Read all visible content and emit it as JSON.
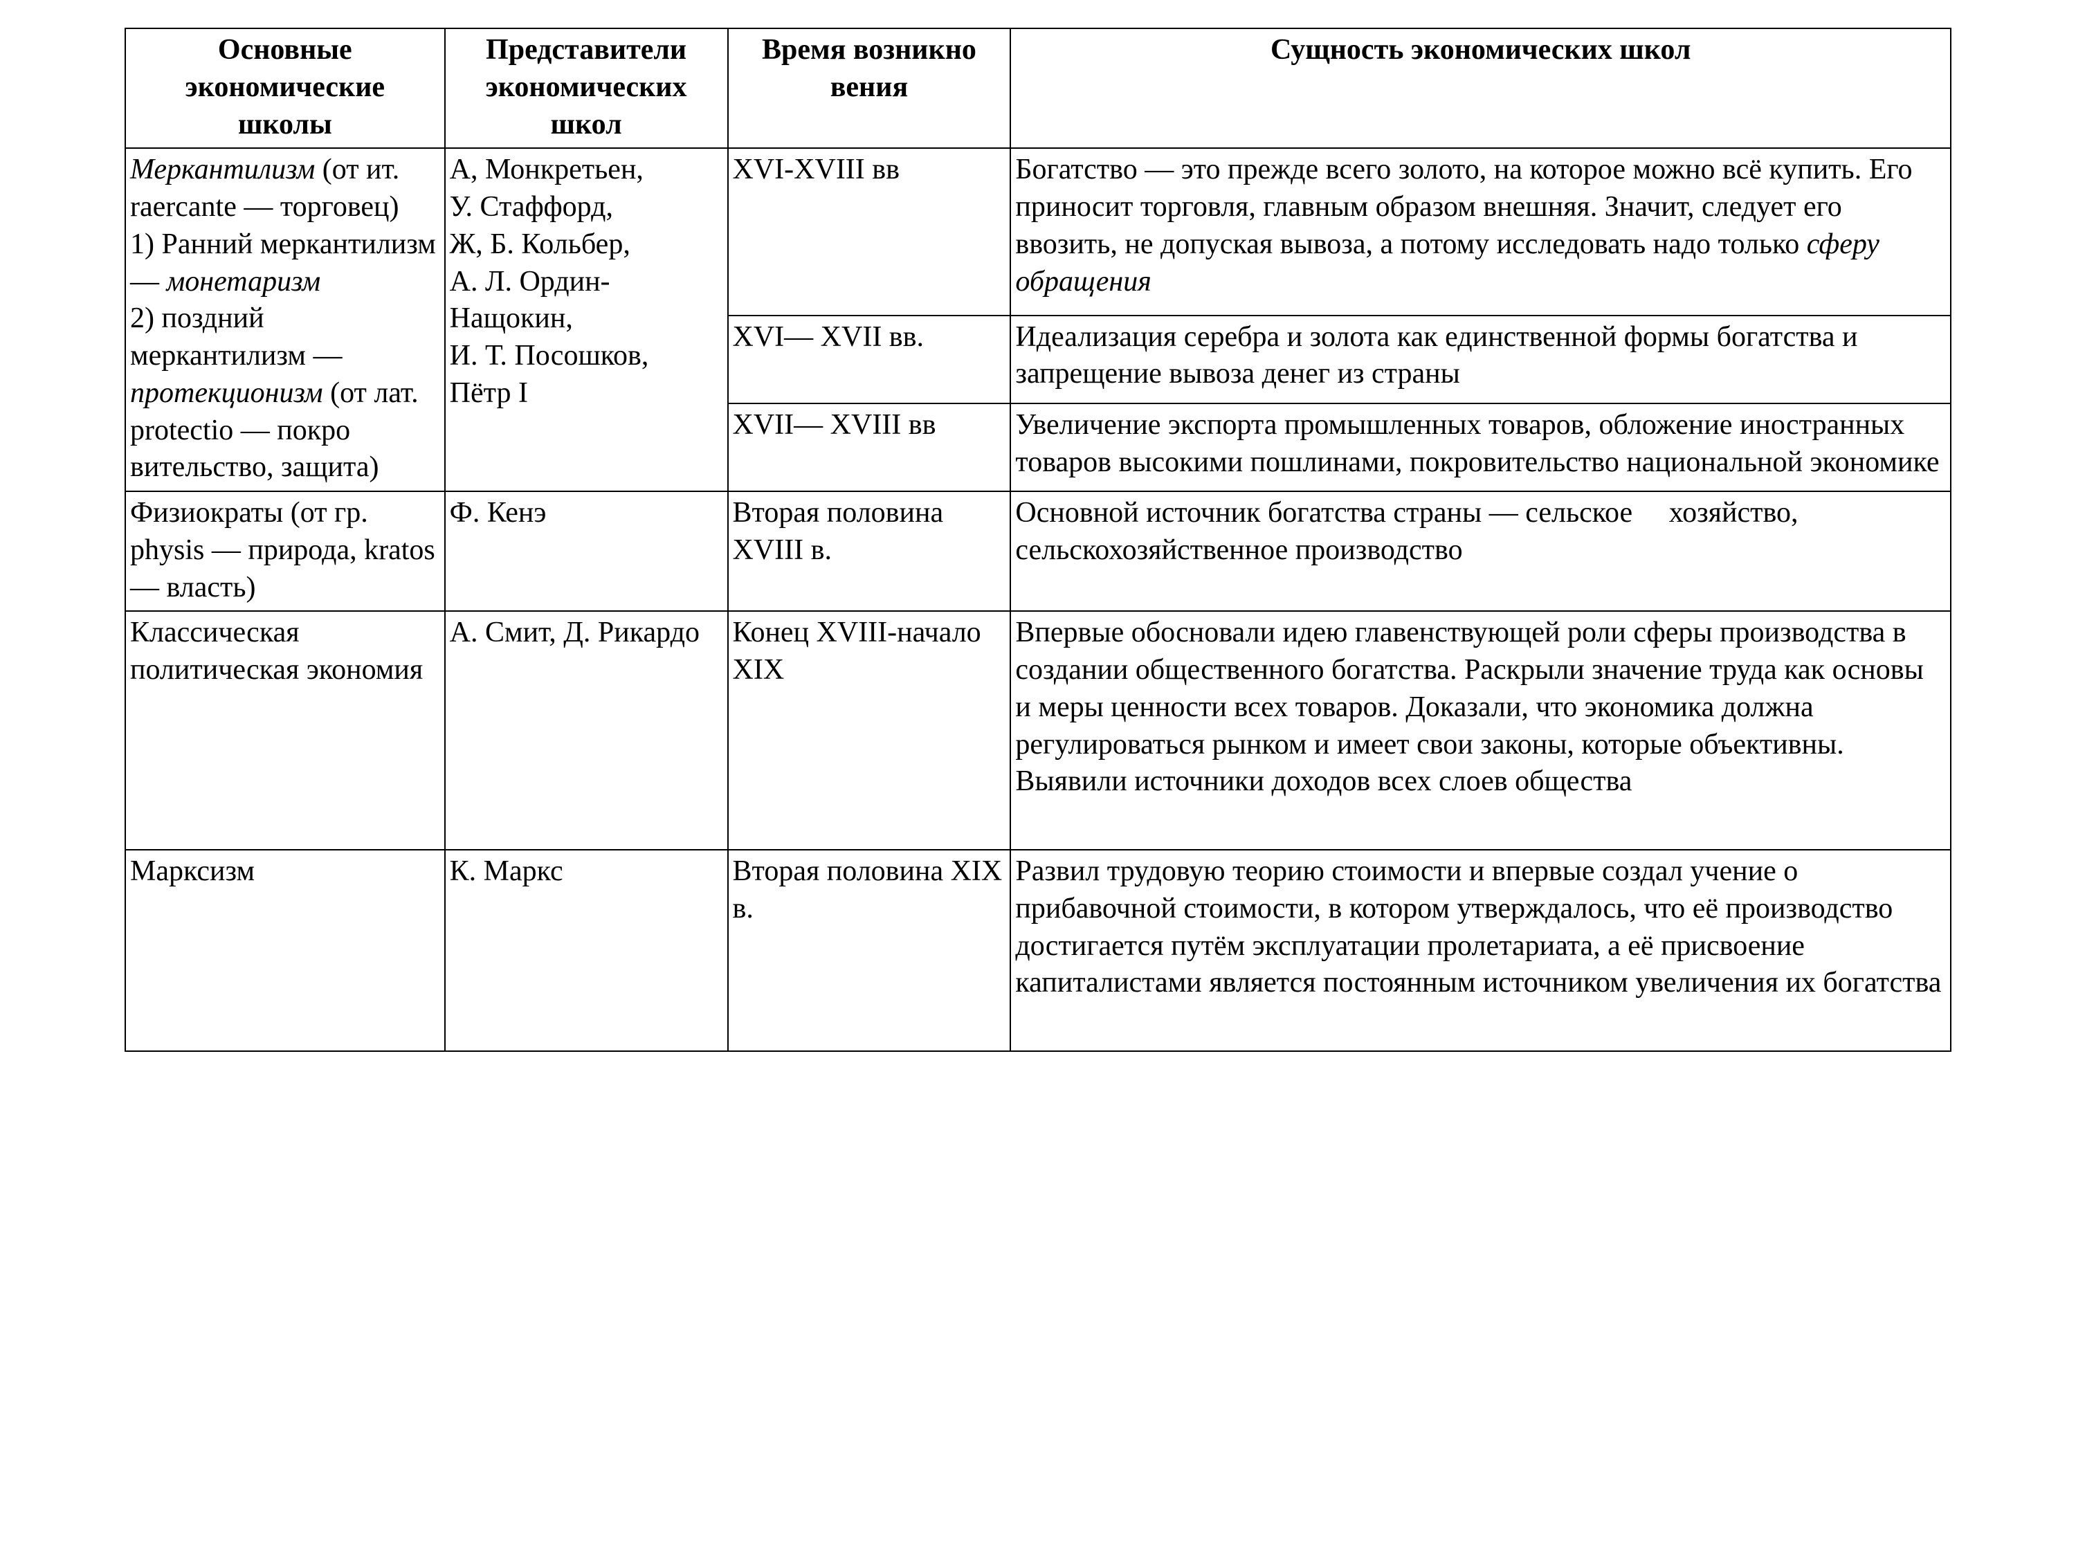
{
  "table": {
    "headers": {
      "col1_line1": "Основные",
      "col1_line2": "экономические",
      "col1_line3": "школы",
      "col2_line1": "Представители",
      "col2_line2": "экономических",
      "col2_line3": "школ",
      "col3_line1": "Время возникно",
      "col3_line2": "вения",
      "col4_line1": "Сущность экономических школ"
    },
    "row1": {
      "school_html": "<em>Меркантилизм</em> (от ит. raercante — торговец)<br>1) Ранний меркантилизм — <em>монетаризм</em><br>2) поздний меркантилизм — <em>протекционизм</em> (от лат. protectio — покро вительство, защита)",
      "reps": "А, Монкретьен, У. Стаффорд, Ж, Б. Кольбер, А. Л. Ордин-Нащокин, И. Т. Посошков, Пётр I",
      "sub1": {
        "time": "XVI-XVIII вв",
        "essence_html": "Богатство — это прежде всего золото, на которое можно всё купить. Его приносит торговля, главным образом внешняя. Значит, следует его ввозить, не допуская вывоза, а потому исследовать надо только <em>сферу обращения</em>"
      },
      "sub2": {
        "time": "XVI— XVII вв.",
        "essence": "Идеализация серебра и золота как единственной формы богатства и запрещение вывоза денег из страны"
      },
      "sub3": {
        "time": "XVII— XVIII вв",
        "essence": "Увеличение экспорта промышленных товаров, обложение иностранных товаров высокими пошлинами, покровительство национальной экономике"
      }
    },
    "row2": {
      "school": "Физиократы (от гр. physis — природа, kratos — власть)",
      "reps": "Ф. Кенэ",
      "time": "Вторая половина XVIII в.",
      "essence": "Основной источник богатства страны — сельское     хозяйство, сельскохозяйственное производство"
    },
    "row3": {
      "school": "Классическая политическая экономия",
      "reps": "А. Смит, Д. Рикардо",
      "time": "Конец XVIII-начало XIX",
      "essence": "Впервые обосновали идею главенствующей роли сферы производства в создании общественного богатства. Раскрыли значение труда как основы и меры ценности всех товаров. Доказали, что экономика должна регулироваться рынком и имеет свои законы, которые объективны. Выявили источники доходов всех слоев общества"
    },
    "row4": {
      "school": "Марксизм",
      "reps": "К. Маркс",
      "time": "Вторая половина XIX в.",
      "essence": "Развил трудовую теорию стоимости и впервые создал учение о прибавочной стоимости, в котором утверждалось, что её производство достигается путём эксплуатации пролетариата, а её присвоение капиталистами является постоянным источником увеличения их богатства"
    }
  }
}
